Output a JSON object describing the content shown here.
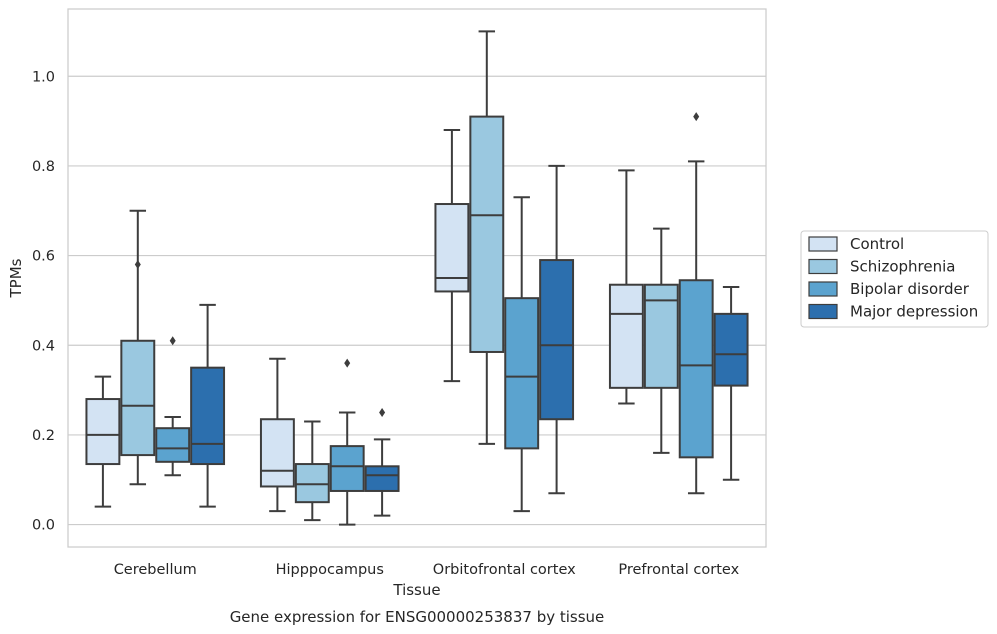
{
  "chart_data": {
    "type": "box",
    "title": "",
    "xlabel": "Tissue",
    "ylabel": "TPMs",
    "caption": "Gene expression for ENSG00000253837 by tissue",
    "ylim": [
      -0.05,
      1.15
    ],
    "yticks": [
      "0.0",
      "0.2",
      "0.4",
      "0.6",
      "0.8",
      "1.0"
    ],
    "grid": true,
    "legend_position": "right",
    "categories": [
      "Cerebellum",
      "Hipppocampus",
      "Orbitofrontal cortex",
      "Prefrontal cortex"
    ],
    "series": [
      {
        "name": "Control",
        "color": "#d3e3f3",
        "boxes": [
          {
            "whislo": 0.04,
            "q1": 0.135,
            "med": 0.2,
            "q3": 0.28,
            "whishi": 0.33,
            "fliers": []
          },
          {
            "whislo": 0.03,
            "q1": 0.085,
            "med": 0.12,
            "q3": 0.235,
            "whishi": 0.37,
            "fliers": []
          },
          {
            "whislo": 0.32,
            "q1": 0.52,
            "med": 0.55,
            "q3": 0.715,
            "whishi": 0.88,
            "fliers": []
          },
          {
            "whislo": 0.27,
            "q1": 0.305,
            "med": 0.47,
            "q3": 0.535,
            "whishi": 0.79,
            "fliers": []
          }
        ]
      },
      {
        "name": "Schizophrenia",
        "color": "#9ac8e0",
        "boxes": [
          {
            "whislo": 0.09,
            "q1": 0.155,
            "med": 0.265,
            "q3": 0.41,
            "whishi": 0.7,
            "fliers": [
              0.58
            ]
          },
          {
            "whislo": 0.01,
            "q1": 0.05,
            "med": 0.09,
            "q3": 0.135,
            "whishi": 0.23,
            "fliers": []
          },
          {
            "whislo": 0.18,
            "q1": 0.385,
            "med": 0.69,
            "q3": 0.91,
            "whishi": 1.1,
            "fliers": []
          },
          {
            "whislo": 0.16,
            "q1": 0.305,
            "med": 0.5,
            "q3": 0.535,
            "whishi": 0.66,
            "fliers": []
          }
        ]
      },
      {
        "name": "Bipolar disorder",
        "color": "#5ba3cf",
        "boxes": [
          {
            "whislo": 0.11,
            "q1": 0.14,
            "med": 0.17,
            "q3": 0.215,
            "whishi": 0.24,
            "fliers": [
              0.41
            ]
          },
          {
            "whislo": 0.0,
            "q1": 0.075,
            "med": 0.13,
            "q3": 0.175,
            "whishi": 0.25,
            "fliers": [
              0.36
            ]
          },
          {
            "whislo": 0.03,
            "q1": 0.17,
            "med": 0.33,
            "q3": 0.505,
            "whishi": 0.73,
            "fliers": []
          },
          {
            "whislo": 0.07,
            "q1": 0.15,
            "med": 0.355,
            "q3": 0.545,
            "whishi": 0.81,
            "fliers": [
              0.91
            ]
          }
        ]
      },
      {
        "name": "Major depression",
        "color": "#2c6fae",
        "boxes": [
          {
            "whislo": 0.04,
            "q1": 0.135,
            "med": 0.18,
            "q3": 0.35,
            "whishi": 0.49,
            "fliers": []
          },
          {
            "whislo": 0.02,
            "q1": 0.075,
            "med": 0.11,
            "q3": 0.13,
            "whishi": 0.19,
            "fliers": [
              0.25
            ]
          },
          {
            "whislo": 0.07,
            "q1": 0.235,
            "med": 0.4,
            "q3": 0.59,
            "whishi": 0.8,
            "fliers": []
          },
          {
            "whislo": 0.1,
            "q1": 0.31,
            "med": 0.38,
            "q3": 0.47,
            "whishi": 0.53,
            "fliers": []
          }
        ]
      }
    ]
  }
}
